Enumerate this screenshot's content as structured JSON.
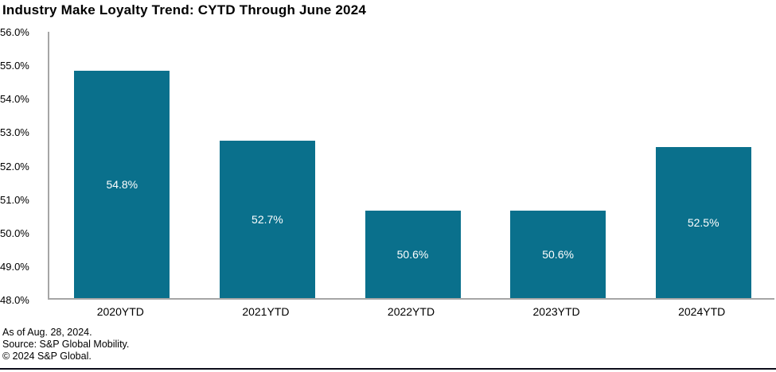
{
  "title": "Industry Make Loyalty Trend: CYTD Through June 2024",
  "footer": {
    "as_of": "As of Aug. 28, 2024.",
    "source": "Source: S&P Global Mobility.",
    "copyright": "© 2024 S&P Global."
  },
  "colors": {
    "bar": "#0a708c",
    "axis": "#a6a6a6",
    "bar_label": "#ffffff",
    "bottom_rule": "#0d0d1a"
  },
  "chart_data": {
    "type": "bar",
    "title": "Industry Make Loyalty Trend: CYTD Through June 2024",
    "categories": [
      "2020YTD",
      "2021YTD",
      "2022YTD",
      "2023YTD",
      "2024YTD"
    ],
    "values": [
      54.8,
      52.7,
      50.6,
      50.6,
      52.5
    ],
    "data_labels": [
      "54.8%",
      "52.7%",
      "50.6%",
      "50.6%",
      "52.5%"
    ],
    "xlabel": "",
    "ylabel": "",
    "ylim": [
      48.0,
      56.0
    ],
    "ytick_step": 1.0,
    "ytick_labels": [
      "48.0%",
      "49.0%",
      "50.0%",
      "51.0%",
      "52.0%",
      "53.0%",
      "54.0%",
      "55.0%",
      "56.0%"
    ],
    "grid": false,
    "legend_position": "none",
    "data_label_position": "inside-center"
  }
}
